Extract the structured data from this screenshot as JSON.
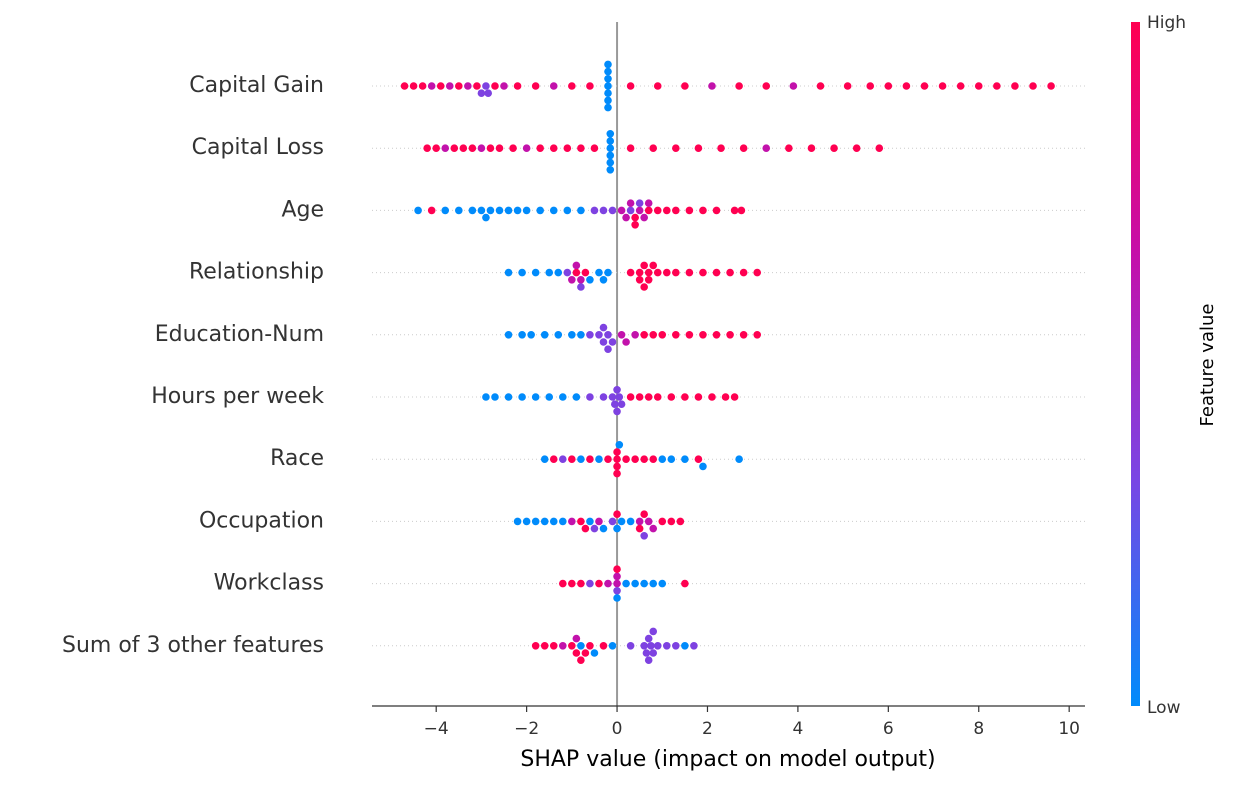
{
  "chart_data": {
    "type": "beeswarm",
    "xlabel": "SHAP value (impact on model output)",
    "xlim": [
      -5.42,
      10.35
    ],
    "xticks": [
      {
        "value": -4,
        "label": "−4"
      },
      {
        "value": -2,
        "label": "−2"
      },
      0,
      2,
      4,
      6,
      8,
      10
    ],
    "colormap": [
      "#008bfb",
      "#7a45e4",
      "#c60fa8",
      "#ff0051"
    ],
    "colorbar": {
      "label": "Feature value",
      "high_label": "High",
      "low_label": "Low"
    },
    "rows": [
      {
        "name": "Capital Gain",
        "shap": [
          -4.7,
          -4.5,
          -4.3,
          -4.1,
          -3.9,
          -3.7,
          -3.5,
          -3.3,
          -3.1,
          -3.0,
          -2.9,
          -2.85,
          -2.7,
          -2.5,
          -2.2,
          -1.8,
          -1.4,
          -1.0,
          -0.6,
          -0.2,
          -0.2,
          -0.2,
          -0.2,
          -0.2,
          -0.2,
          -0.2,
          0.3,
          0.9,
          1.5,
          2.1,
          2.7,
          3.3,
          3.9,
          4.5,
          5.1,
          5.6,
          6.0,
          6.4,
          6.8,
          7.2,
          7.6,
          8.0,
          8.4,
          8.8,
          9.2,
          9.6
        ],
        "feature_value": [
          1,
          1,
          1,
          0.65,
          1,
          0.65,
          1,
          0.65,
          1,
          0.35,
          0.35,
          0.35,
          1,
          0.65,
          1,
          1,
          0.65,
          1,
          1,
          0,
          0,
          0,
          0,
          0,
          0,
          0,
          1,
          1,
          1,
          0.65,
          1,
          1,
          0.65,
          1,
          1,
          1,
          1,
          1,
          1,
          1,
          1,
          1,
          1,
          1,
          1,
          1
        ]
      },
      {
        "name": "Capital Loss",
        "shap": [
          -4.2,
          -4.0,
          -3.8,
          -3.6,
          -3.4,
          -3.2,
          -3.0,
          -2.8,
          -2.6,
          -2.3,
          -2.0,
          -1.7,
          -1.4,
          -1.1,
          -0.8,
          -0.5,
          -0.15,
          -0.15,
          -0.15,
          -0.15,
          -0.15,
          -0.15,
          0.3,
          0.8,
          1.3,
          1.8,
          2.3,
          2.8,
          3.3,
          3.8,
          4.3,
          4.8,
          5.3,
          5.8
        ],
        "feature_value": [
          1,
          1,
          0.65,
          1,
          1,
          1,
          0.65,
          1,
          1,
          1,
          0.65,
          1,
          1,
          1,
          1,
          1,
          0,
          0,
          0,
          0,
          0,
          0,
          1,
          1,
          1,
          1,
          1,
          1,
          0.65,
          1,
          1,
          1,
          1,
          1
        ]
      },
      {
        "name": "Age",
        "shap": [
          -4.4,
          -4.1,
          -3.8,
          -3.5,
          -3.2,
          -3.0,
          -2.9,
          -2.8,
          -2.6,
          -2.4,
          -2.2,
          -2.0,
          -1.7,
          -1.4,
          -1.1,
          -0.8,
          -0.5,
          -0.3,
          -0.1,
          0.1,
          0.2,
          0.3,
          0.4,
          0.5,
          0.6,
          0.7,
          0.3,
          0.5,
          0.7,
          0.4,
          0.9,
          1.1,
          1.3,
          1.6,
          1.9,
          2.2,
          2.6,
          2.75
        ],
        "feature_value": [
          0,
          1,
          0,
          0,
          0,
          0,
          0,
          0,
          0,
          0,
          0,
          0,
          0,
          0,
          0,
          0,
          0.35,
          0.35,
          0.35,
          0.65,
          0.65,
          0.35,
          1,
          0.65,
          0.65,
          1,
          0.65,
          0.35,
          0.65,
          1,
          1,
          1,
          1,
          1,
          1,
          1,
          1,
          1
        ]
      },
      {
        "name": "Relationship",
        "shap": [
          -2.4,
          -2.1,
          -1.8,
          -1.5,
          -1.3,
          -1.1,
          -1.0,
          -0.9,
          -0.8,
          -0.9,
          -0.8,
          -0.7,
          -0.6,
          -0.4,
          -0.3,
          -0.2,
          0.3,
          0.5,
          0.6,
          0.7,
          0.8,
          0.5,
          0.6,
          0.7,
          0.9,
          1.1,
          1.3,
          1.6,
          1.9,
          2.2,
          2.5,
          2.8,
          3.1
        ],
        "feature_value": [
          0,
          0,
          0,
          0,
          0,
          0.35,
          0.65,
          1,
          0.65,
          0.65,
          0.35,
          1,
          0,
          0,
          0,
          0,
          1,
          1,
          1,
          1,
          1,
          1,
          1,
          1,
          1,
          1,
          1,
          1,
          1,
          1,
          1,
          1,
          1
        ]
      },
      {
        "name": "Education-Num",
        "shap": [
          -2.4,
          -2.1,
          -1.9,
          -1.6,
          -1.3,
          -1.0,
          -0.8,
          -0.6,
          -0.4,
          -0.3,
          -0.2,
          -0.1,
          -0.3,
          -0.2,
          0.1,
          0.2,
          0.4,
          0.6,
          0.8,
          1.0,
          1.3,
          1.6,
          1.9,
          2.2,
          2.5,
          2.8,
          3.1
        ],
        "feature_value": [
          0,
          0,
          0,
          0,
          0,
          0,
          0,
          0.35,
          0.35,
          0.35,
          0.35,
          0.35,
          0.35,
          0.35,
          0.65,
          0.65,
          0.65,
          1,
          1,
          1,
          1,
          1,
          1,
          1,
          1,
          1,
          1
        ]
      },
      {
        "name": "Hours per week",
        "shap": [
          -2.9,
          -2.7,
          -2.4,
          -2.1,
          -1.8,
          -1.5,
          -1.2,
          -0.9,
          -0.6,
          -0.3,
          -0.1,
          0.0,
          0.05,
          0.0,
          -0.05,
          0.1,
          0.3,
          0.5,
          0.7,
          0.9,
          1.2,
          1.5,
          1.8,
          2.1,
          2.4,
          2.6
        ],
        "feature_value": [
          0,
          0,
          0,
          0,
          0,
          0,
          0,
          0,
          0.35,
          0.35,
          0.35,
          0.35,
          0.35,
          0.35,
          0.35,
          0.35,
          1,
          1,
          1,
          1,
          1,
          1,
          1,
          1,
          1,
          1
        ]
      },
      {
        "name": "Race",
        "shap": [
          -1.6,
          -1.4,
          -1.2,
          -1.0,
          -0.8,
          -0.6,
          -0.4,
          -0.2,
          0.0,
          0.0,
          0.0,
          0.05,
          0.0,
          0.2,
          0.4,
          0.6,
          0.8,
          1.0,
          1.2,
          1.5,
          1.8,
          1.9,
          2.7
        ],
        "feature_value": [
          0,
          1,
          0.35,
          1,
          0,
          1,
          0,
          1,
          1,
          1,
          1,
          0,
          1,
          1,
          1,
          1,
          1,
          0,
          0,
          0,
          1,
          0,
          0
        ]
      },
      {
        "name": "Occupation",
        "shap": [
          -2.2,
          -2.0,
          -1.8,
          -1.6,
          -1.4,
          -1.2,
          -1.0,
          -0.8,
          -0.6,
          -0.4,
          -0.7,
          -0.5,
          -0.3,
          -0.1,
          0.0,
          0.0,
          0.1,
          0.3,
          0.5,
          0.6,
          0.7,
          0.5,
          0.6,
          0.8,
          1.0,
          1.2,
          1.4
        ],
        "feature_value": [
          0,
          0,
          0,
          0,
          0,
          0,
          0.65,
          1,
          0,
          0.65,
          1,
          0.35,
          0,
          0.35,
          0,
          1,
          0,
          0,
          0.65,
          1,
          0.65,
          1,
          0.35,
          0.65,
          1,
          1,
          1
        ]
      },
      {
        "name": "Workclass",
        "shap": [
          -1.2,
          -1.0,
          -0.8,
          -0.6,
          -0.4,
          -0.2,
          0.0,
          0.0,
          0.0,
          0.0,
          0.0,
          0.2,
          0.4,
          0.6,
          0.8,
          1.0,
          1.5
        ],
        "feature_value": [
          1,
          1,
          1,
          0.35,
          1,
          0.65,
          0.65,
          0.35,
          0.65,
          0,
          1,
          0,
          0,
          0,
          0,
          0,
          1
        ]
      },
      {
        "name": "Sum of 3 other features",
        "shap": [
          -1.8,
          -1.6,
          -1.4,
          -1.2,
          -1.0,
          -0.9,
          -0.8,
          -0.7,
          -0.6,
          -0.9,
          -0.8,
          -0.5,
          -0.3,
          -0.1,
          0.3,
          0.6,
          0.7,
          0.8,
          0.7,
          0.75,
          0.8,
          0.65,
          0.9,
          1.1,
          1.3,
          1.5,
          1.7
        ],
        "feature_value": [
          1,
          1,
          1,
          0.65,
          1,
          1,
          0,
          1,
          1,
          0.65,
          1,
          0,
          1,
          0,
          0.35,
          0.35,
          0.35,
          0.35,
          0.35,
          0.35,
          0.35,
          0.35,
          0.35,
          0.35,
          0.35,
          0,
          0.35
        ]
      }
    ]
  }
}
